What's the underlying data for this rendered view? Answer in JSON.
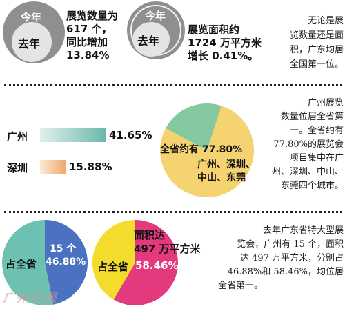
{
  "section1": {
    "circle1": {
      "outer_label": "今年",
      "inner_label": "去年",
      "caption_lines": [
        "展览数量为",
        "617 个，",
        "同比增加",
        "13.84%"
      ]
    },
    "circle2": {
      "outer_label": "今年",
      "inner_label": "去年",
      "caption_lines": [
        "展览面积约",
        "1724 万平方米",
        "增长 0.41%。"
      ]
    },
    "note_lines": [
      "无论是展",
      "览数量还是面",
      "积，广东均居",
      "全国第一位。"
    ]
  },
  "section2": {
    "bars": [
      {
        "city": "广州",
        "value_label": "41.65%",
        "value": 41.65,
        "color_start": "#e2f0ec",
        "color_end": "#6ab7ad"
      },
      {
        "city": "深圳",
        "value_label": "15.88%",
        "value": 15.88,
        "color_start": "#fbebd7",
        "color_end": "#efa86a"
      }
    ],
    "pie": {
      "share": 77.8,
      "top_label": "全省约有 77.80%",
      "bottom_lines": [
        "广州、深圳、",
        "中山、东莞"
      ],
      "color_major": "#f5d371",
      "color_minor": "#86c8a0"
    },
    "note_lines": [
      "广州展览",
      "数量位居全省第",
      "一。全省约有",
      "77.80%的展览会",
      "项目集中在广",
      "州、深圳、中山、",
      "东莞四个城市。"
    ]
  },
  "section3": {
    "pie_count": {
      "share": 46.88,
      "left_label": "占全省",
      "right_lines": [
        "15 个",
        "46.88%"
      ],
      "color_major": "#4a72c0",
      "color_rest": "#6cc1b3"
    },
    "pie_area": {
      "share": 58.46,
      "top_lines": [
        "面积达",
        "497 万平方米"
      ],
      "left_label": "占全省",
      "value_label": "58.46%",
      "color_major": "#e3397f",
      "color_rest": "#f3dc2b"
    },
    "note_lines": [
      "去年广东省特大型展",
      "览会，广州有 15 个，面积",
      "达 497 万平方米，分别占",
      "46.88%和 58.46%，均位居",
      "全省第一。"
    ],
    "watermark": "广州日报"
  }
}
